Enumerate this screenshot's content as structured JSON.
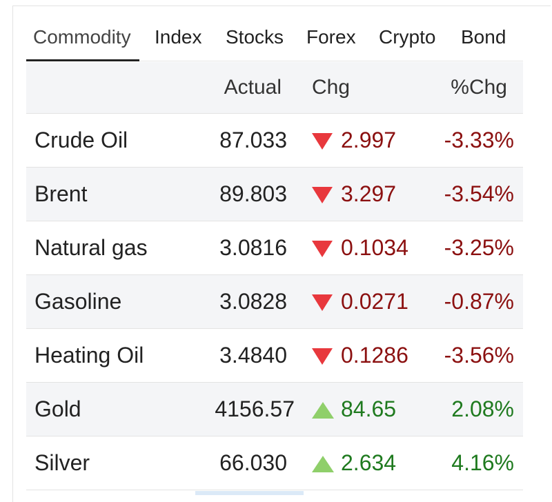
{
  "tabs": [
    "Commodity",
    "Index",
    "Stocks",
    "Forex",
    "Crypto",
    "Bond"
  ],
  "table": {
    "columns": [
      "Actual",
      "Chg",
      "%Chg"
    ],
    "rows": [
      [
        "Crude Oil",
        "87.033",
        "2.997",
        "-3.33%"
      ],
      [
        "Brent",
        "89.803",
        "3.297",
        "-3.54%"
      ],
      [
        "Natural gas",
        "3.0816",
        "0.1034",
        "-3.25%"
      ],
      [
        "Gasoline",
        "3.0828",
        "0.0271",
        "-0.87%"
      ],
      [
        "Heating Oil",
        "3.4840",
        "0.1286",
        "-3.56%"
      ],
      [
        "Gold",
        "4156.57",
        "84.65",
        "2.08%"
      ],
      [
        "Silver",
        "66.030",
        "2.634",
        "4.16%"
      ]
    ]
  }
}
